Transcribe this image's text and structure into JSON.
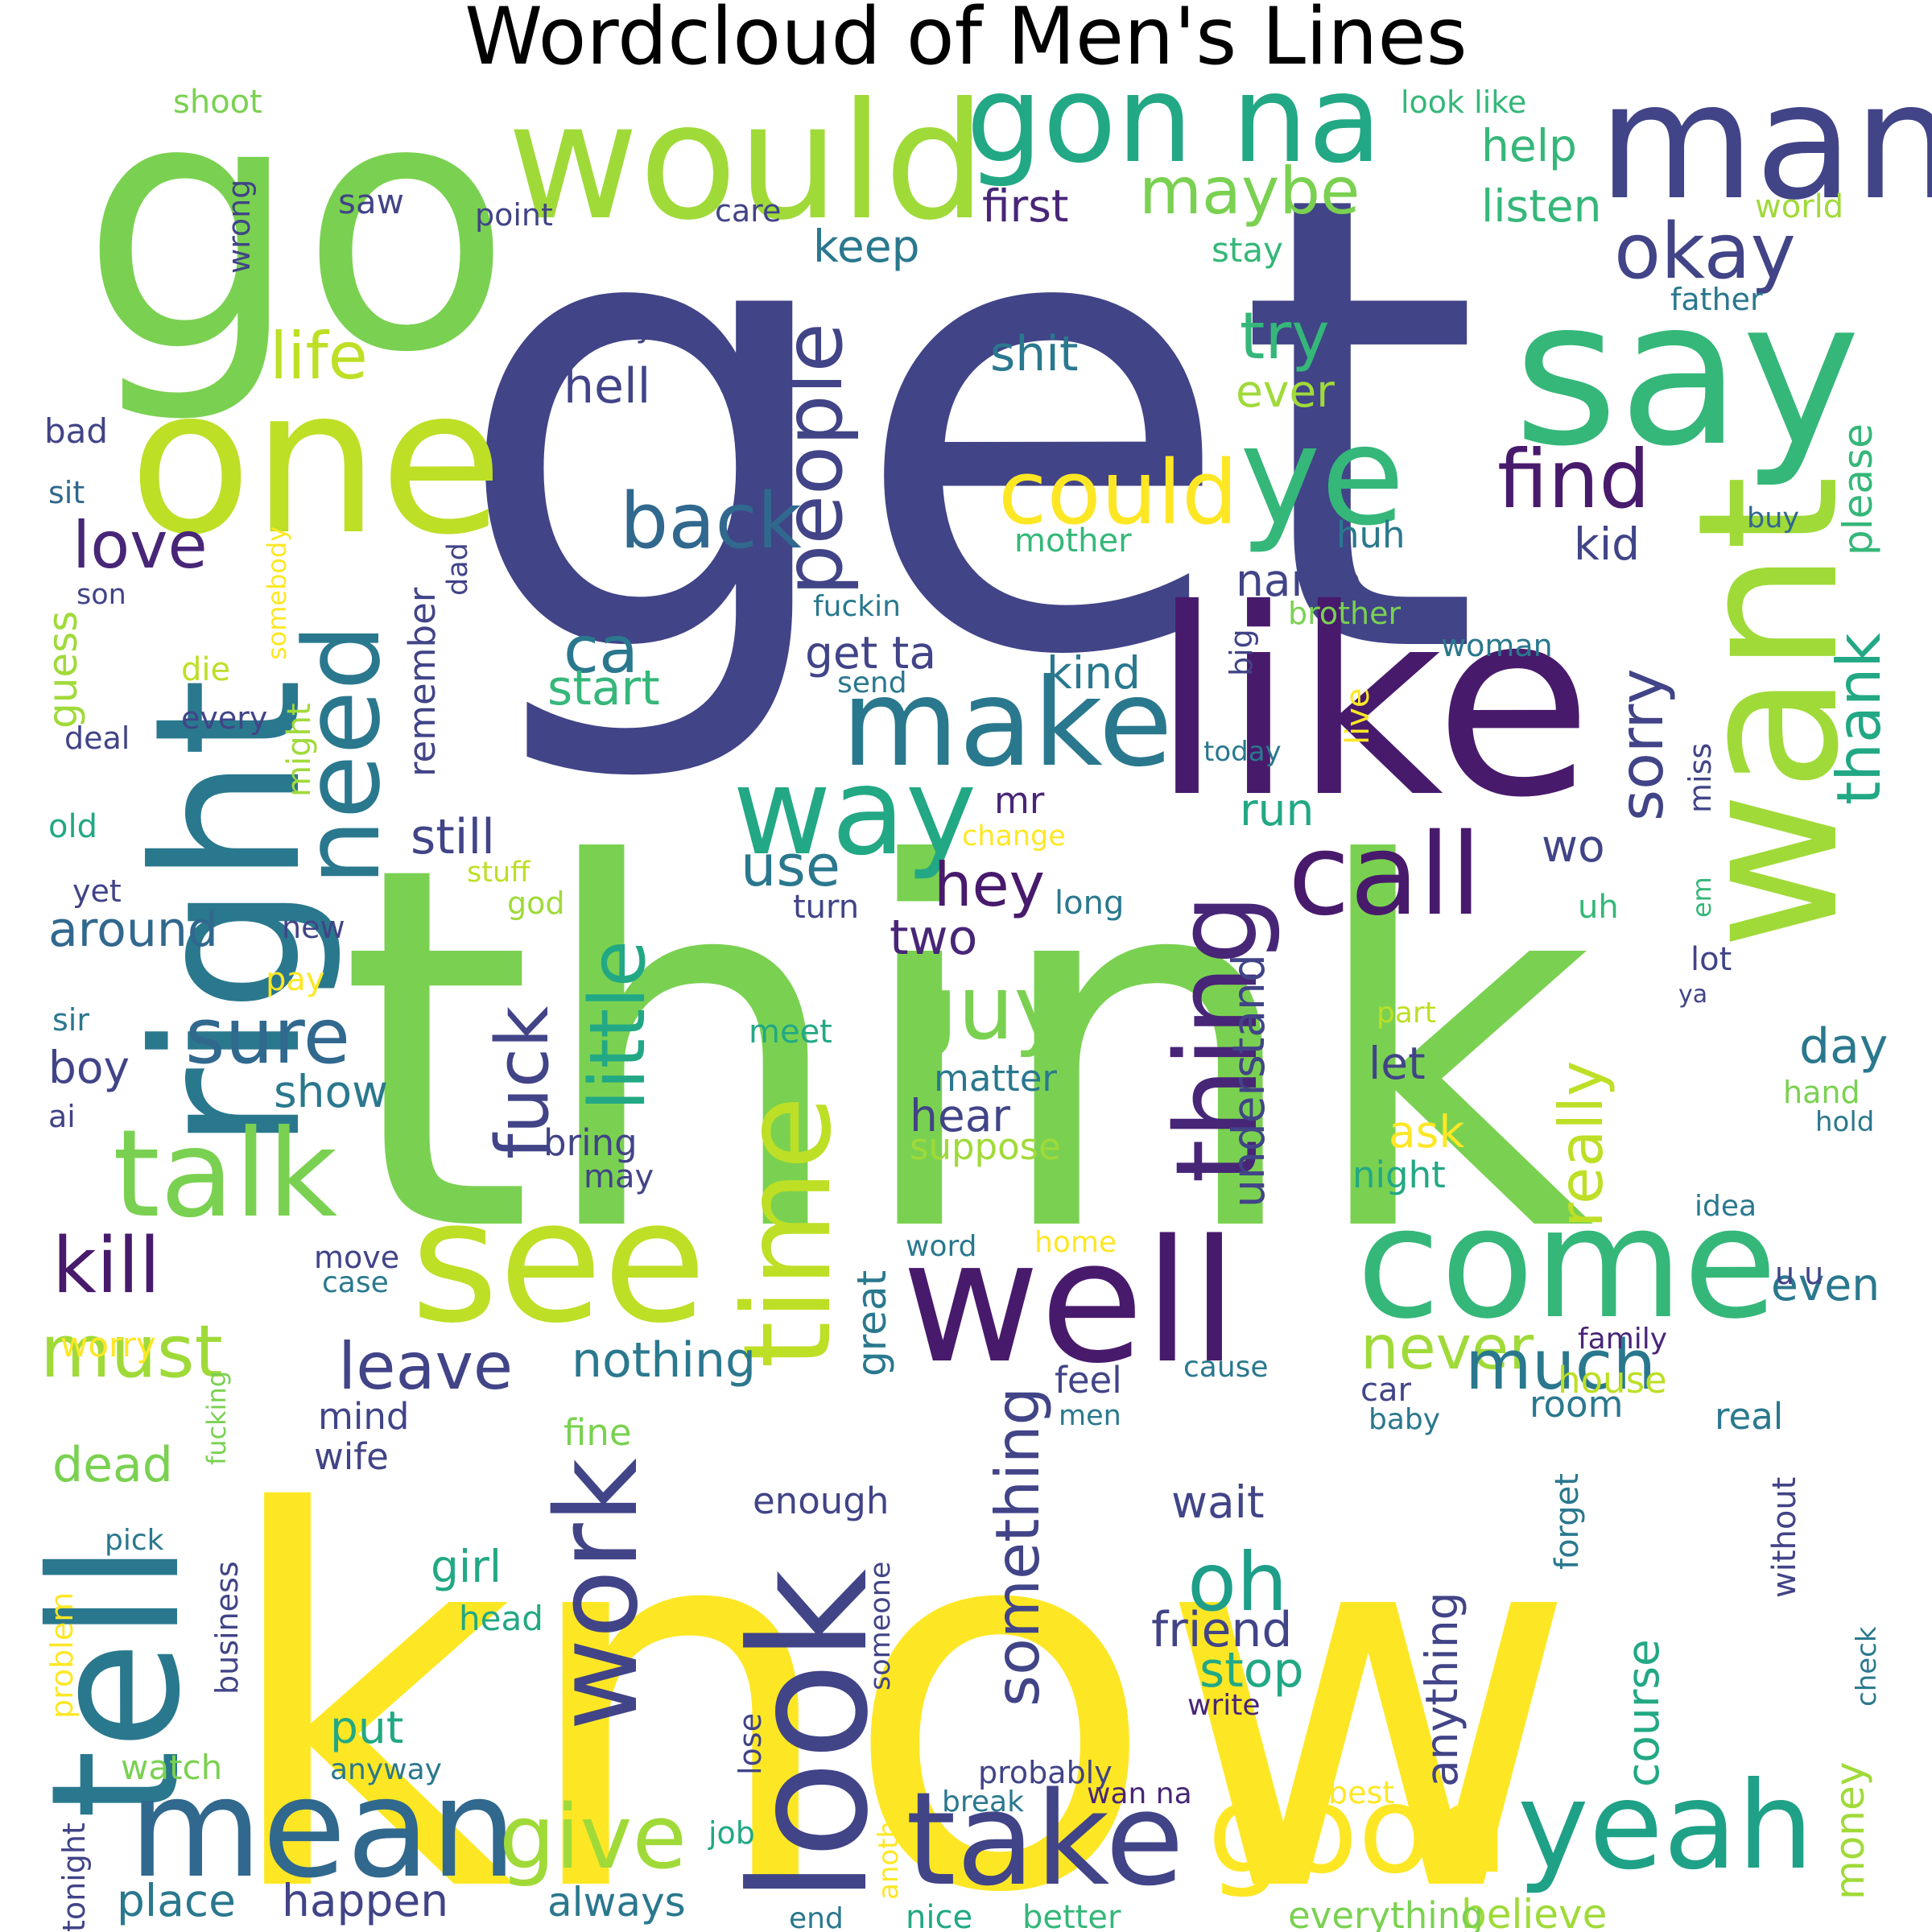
{
  "title": "Wordcloud of Men's Lines",
  "palette": {
    "dark_navy": "#414487",
    "deep_purple": "#482677",
    "teal_blue": "#2a788e",
    "teal": "#22a884",
    "green": "#7ad151",
    "lime": "#bddf26",
    "yellow": "#fde725"
  },
  "words": [
    {
      "text": "get",
      "color": "#414487"
    },
    {
      "text": "think",
      "color": "#7ad151"
    },
    {
      "text": "know",
      "color": "#fde725"
    },
    {
      "text": "go",
      "color": "#7ad151"
    },
    {
      "text": "one",
      "color": "#bddf26"
    },
    {
      "text": "right",
      "color": "#2a788e"
    },
    {
      "text": "would",
      "color": "#a0da39"
    },
    {
      "text": "gon na",
      "color": "#22a884"
    },
    {
      "text": "man",
      "color": "#414487"
    },
    {
      "text": "say",
      "color": "#35b779"
    },
    {
      "text": "want",
      "color": "#a0da39"
    },
    {
      "text": "like",
      "color": "#481a6c"
    },
    {
      "text": "ye",
      "color": "#35b779"
    },
    {
      "text": "tell",
      "color": "#2a788e"
    },
    {
      "text": "need",
      "color": "#2a788e"
    },
    {
      "text": "talk",
      "color": "#7ad151"
    },
    {
      "text": "make",
      "color": "#2a788e"
    },
    {
      "text": "way",
      "color": "#22a884"
    },
    {
      "text": "call",
      "color": "#481a6c"
    },
    {
      "text": "see",
      "color": "#bddf26"
    },
    {
      "text": "well",
      "color": "#481a6c"
    },
    {
      "text": "come",
      "color": "#35b779"
    },
    {
      "text": "time",
      "color": "#bddf26"
    },
    {
      "text": "thing",
      "color": "#482677"
    },
    {
      "text": "look",
      "color": "#414487"
    },
    {
      "text": "mean",
      "color": "#31688e"
    },
    {
      "text": "work",
      "color": "#414487"
    },
    {
      "text": "take",
      "color": "#414487"
    },
    {
      "text": "good",
      "color": "#fde725"
    },
    {
      "text": "yeah",
      "color": "#1fa187"
    },
    {
      "text": "could",
      "color": "#fde725"
    },
    {
      "text": "find",
      "color": "#481a6c"
    },
    {
      "text": "people",
      "color": "#414487"
    },
    {
      "text": "back",
      "color": "#31688e"
    },
    {
      "text": "okay",
      "color": "#414487"
    },
    {
      "text": "maybe",
      "color": "#7ad151"
    },
    {
      "text": "life",
      "color": "#bddf26"
    },
    {
      "text": "love",
      "color": "#482677"
    },
    {
      "text": "sure",
      "color": "#31688e"
    },
    {
      "text": "guy",
      "color": "#7ad151"
    },
    {
      "text": "little",
      "color": "#22a884"
    },
    {
      "text": "fuck",
      "color": "#414487"
    },
    {
      "text": "kill",
      "color": "#481a6c"
    },
    {
      "text": "must",
      "color": "#a0da39"
    },
    {
      "text": "leave",
      "color": "#414487"
    },
    {
      "text": "never",
      "color": "#a0da39"
    },
    {
      "text": "much",
      "color": "#2a788e"
    },
    {
      "text": "oh",
      "color": "#1f9e89"
    },
    {
      "text": "give",
      "color": "#a0da39"
    },
    {
      "text": "ca",
      "color": "#2a788e"
    },
    {
      "text": "try",
      "color": "#35b779"
    },
    {
      "text": "sorry",
      "color": "#414487"
    },
    {
      "text": "thank",
      "color": "#22a884"
    },
    {
      "text": "really",
      "color": "#bddf26"
    },
    {
      "text": "something",
      "color": "#414487"
    },
    {
      "text": "understand",
      "color": "#414487"
    },
    {
      "text": "hey",
      "color": "#481a6c"
    },
    {
      "text": "use",
      "color": "#2a788e"
    },
    {
      "text": "shit",
      "color": "#2a788e"
    },
    {
      "text": "hell",
      "color": "#414487"
    },
    {
      "text": "play",
      "color": "#414487"
    },
    {
      "text": "first",
      "color": "#482677"
    },
    {
      "text": "keep",
      "color": "#2a788e"
    },
    {
      "text": "listen",
      "color": "#35b779"
    },
    {
      "text": "help",
      "color": "#35b779"
    },
    {
      "text": "ever",
      "color": "#a0da39"
    },
    {
      "text": "please",
      "color": "#35b779"
    },
    {
      "text": "kid",
      "color": "#414487"
    },
    {
      "text": "huh",
      "color": "#2a788e"
    },
    {
      "text": "name",
      "color": "#414487"
    },
    {
      "text": "kind",
      "color": "#2a788e"
    },
    {
      "text": "get ta",
      "color": "#414487"
    },
    {
      "text": "start",
      "color": "#35b779"
    },
    {
      "text": "still",
      "color": "#414487"
    },
    {
      "text": "around",
      "color": "#31688e"
    },
    {
      "text": "remember",
      "color": "#414487"
    },
    {
      "text": "guess",
      "color": "#a0da39"
    },
    {
      "text": "show",
      "color": "#2a788e"
    },
    {
      "text": "boy",
      "color": "#414487"
    },
    {
      "text": "two",
      "color": "#482677"
    },
    {
      "text": "mr",
      "color": "#482677"
    },
    {
      "text": "run",
      "color": "#22a884"
    },
    {
      "text": "wo",
      "color": "#414487"
    },
    {
      "text": "day",
      "color": "#2a788e"
    },
    {
      "text": "let",
      "color": "#414487"
    },
    {
      "text": "ask",
      "color": "#fde725"
    },
    {
      "text": "hear",
      "color": "#414487"
    },
    {
      "text": "matter",
      "color": "#2a788e"
    },
    {
      "text": "bring",
      "color": "#414487"
    },
    {
      "text": "suppose",
      "color": "#a0da39"
    },
    {
      "text": "night",
      "color": "#22a884"
    },
    {
      "text": "dead",
      "color": "#7ad151"
    },
    {
      "text": "wait",
      "color": "#414487"
    },
    {
      "text": "girl",
      "color": "#22a884"
    },
    {
      "text": "friend",
      "color": "#414487"
    },
    {
      "text": "stop",
      "color": "#22a884"
    },
    {
      "text": "anything",
      "color": "#414487"
    },
    {
      "text": "course",
      "color": "#22a884"
    },
    {
      "text": "nothing",
      "color": "#2a788e"
    },
    {
      "text": "great",
      "color": "#2a788e"
    },
    {
      "text": "enough",
      "color": "#414487"
    },
    {
      "text": "put",
      "color": "#22a884"
    },
    {
      "text": "happen",
      "color": "#414487"
    },
    {
      "text": "place",
      "color": "#2a788e"
    },
    {
      "text": "always",
      "color": "#2a788e"
    },
    {
      "text": "believe",
      "color": "#a0da39"
    },
    {
      "text": "everything",
      "color": "#7ad151"
    },
    {
      "text": "money",
      "color": "#a0da39"
    },
    {
      "text": "wife",
      "color": "#414487"
    },
    {
      "text": "mind",
      "color": "#414487"
    },
    {
      "text": "feel",
      "color": "#414487"
    },
    {
      "text": "fine",
      "color": "#7ad151"
    },
    {
      "text": "house",
      "color": "#bddf26"
    },
    {
      "text": "room",
      "color": "#2a788e"
    },
    {
      "text": "real",
      "color": "#2a788e"
    },
    {
      "text": "even",
      "color": "#2a788e"
    },
    {
      "text": "shoot",
      "color": "#7ad151"
    },
    {
      "text": "saw",
      "color": "#414487"
    },
    {
      "text": "point",
      "color": "#414487"
    },
    {
      "text": "care",
      "color": "#414487"
    },
    {
      "text": "wrong",
      "color": "#414487"
    },
    {
      "text": "look like",
      "color": "#35b779"
    },
    {
      "text": "world",
      "color": "#a0da39"
    },
    {
      "text": "stay",
      "color": "#35b779"
    },
    {
      "text": "father",
      "color": "#2a788e"
    },
    {
      "text": "bad",
      "color": "#414487"
    },
    {
      "text": "sit",
      "color": "#31688e"
    },
    {
      "text": "son",
      "color": "#414487"
    },
    {
      "text": "somebody",
      "color": "#fde725"
    },
    {
      "text": "dad",
      "color": "#414487"
    },
    {
      "text": "die",
      "color": "#bddf26"
    },
    {
      "text": "every",
      "color": "#414487"
    },
    {
      "text": "deal",
      "color": "#414487"
    },
    {
      "text": "might",
      "color": "#a0da39"
    },
    {
      "text": "mother",
      "color": "#35b779"
    },
    {
      "text": "buy",
      "color": "#31688e"
    },
    {
      "text": "fuckin",
      "color": "#2a788e"
    },
    {
      "text": "send",
      "color": "#2a788e"
    },
    {
      "text": "brother",
      "color": "#7ad151"
    },
    {
      "text": "woman",
      "color": "#2a788e"
    },
    {
      "text": "big",
      "color": "#414487"
    },
    {
      "text": "live",
      "color": "#fde725"
    },
    {
      "text": "today",
      "color": "#2a788e"
    },
    {
      "text": "miss",
      "color": "#414487"
    },
    {
      "text": "old",
      "color": "#22a884"
    },
    {
      "text": "yet",
      "color": "#414487"
    },
    {
      "text": "stuff",
      "color": "#bddf26"
    },
    {
      "text": "change",
      "color": "#fde725"
    },
    {
      "text": "god",
      "color": "#a0da39"
    },
    {
      "text": "new",
      "color": "#414487"
    },
    {
      "text": "turn",
      "color": "#414487"
    },
    {
      "text": "long",
      "color": "#2a788e"
    },
    {
      "text": "uh",
      "color": "#35b779"
    },
    {
      "text": "em",
      "color": "#35b779"
    },
    {
      "text": "lot",
      "color": "#414487"
    },
    {
      "text": "ya",
      "color": "#414487"
    },
    {
      "text": "pay",
      "color": "#fde725"
    },
    {
      "text": "sir",
      "color": "#2a788e"
    },
    {
      "text": "meet",
      "color": "#22a884"
    },
    {
      "text": "part",
      "color": "#bddf26"
    },
    {
      "text": "ai",
      "color": "#414487"
    },
    {
      "text": "hand",
      "color": "#7ad151"
    },
    {
      "text": "hold",
      "color": "#2a788e"
    },
    {
      "text": "may",
      "color": "#414487"
    },
    {
      "text": "idea",
      "color": "#2a788e"
    },
    {
      "text": "word",
      "color": "#2a788e"
    },
    {
      "text": "home",
      "color": "#fde725"
    },
    {
      "text": "u u",
      "color": "#414487"
    },
    {
      "text": "move",
      "color": "#414487"
    },
    {
      "text": "case",
      "color": "#2a788e"
    },
    {
      "text": "worry",
      "color": "#fde725"
    },
    {
      "text": "fucking",
      "color": "#7ad151"
    },
    {
      "text": "family",
      "color": "#482677"
    },
    {
      "text": "cause",
      "color": "#2a788e"
    },
    {
      "text": "car",
      "color": "#414487"
    },
    {
      "text": "men",
      "color": "#2a788e"
    },
    {
      "text": "baby",
      "color": "#2a788e"
    },
    {
      "text": "forget",
      "color": "#2a788e"
    },
    {
      "text": "without",
      "color": "#414487"
    },
    {
      "text": "business",
      "color": "#414487"
    },
    {
      "text": "pick",
      "color": "#2a788e"
    },
    {
      "text": "problem",
      "color": "#fde725"
    },
    {
      "text": "head",
      "color": "#22a884"
    },
    {
      "text": "someone",
      "color": "#414487"
    },
    {
      "text": "lose",
      "color": "#414487"
    },
    {
      "text": "write",
      "color": "#482677"
    },
    {
      "text": "check",
      "color": "#2a788e"
    },
    {
      "text": "watch",
      "color": "#7ad151"
    },
    {
      "text": "anyway",
      "color": "#2a788e"
    },
    {
      "text": "probably",
      "color": "#414487"
    },
    {
      "text": "another",
      "color": "#fde725"
    },
    {
      "text": "break",
      "color": "#2a788e"
    },
    {
      "text": "wan na",
      "color": "#482677"
    },
    {
      "text": "best",
      "color": "#fde725"
    },
    {
      "text": "tonight",
      "color": "#414487"
    },
    {
      "text": "job",
      "color": "#22a884"
    },
    {
      "text": "end",
      "color": "#2a788e"
    },
    {
      "text": "nice",
      "color": "#22a884"
    },
    {
      "text": "better",
      "color": "#35b779"
    }
  ]
}
